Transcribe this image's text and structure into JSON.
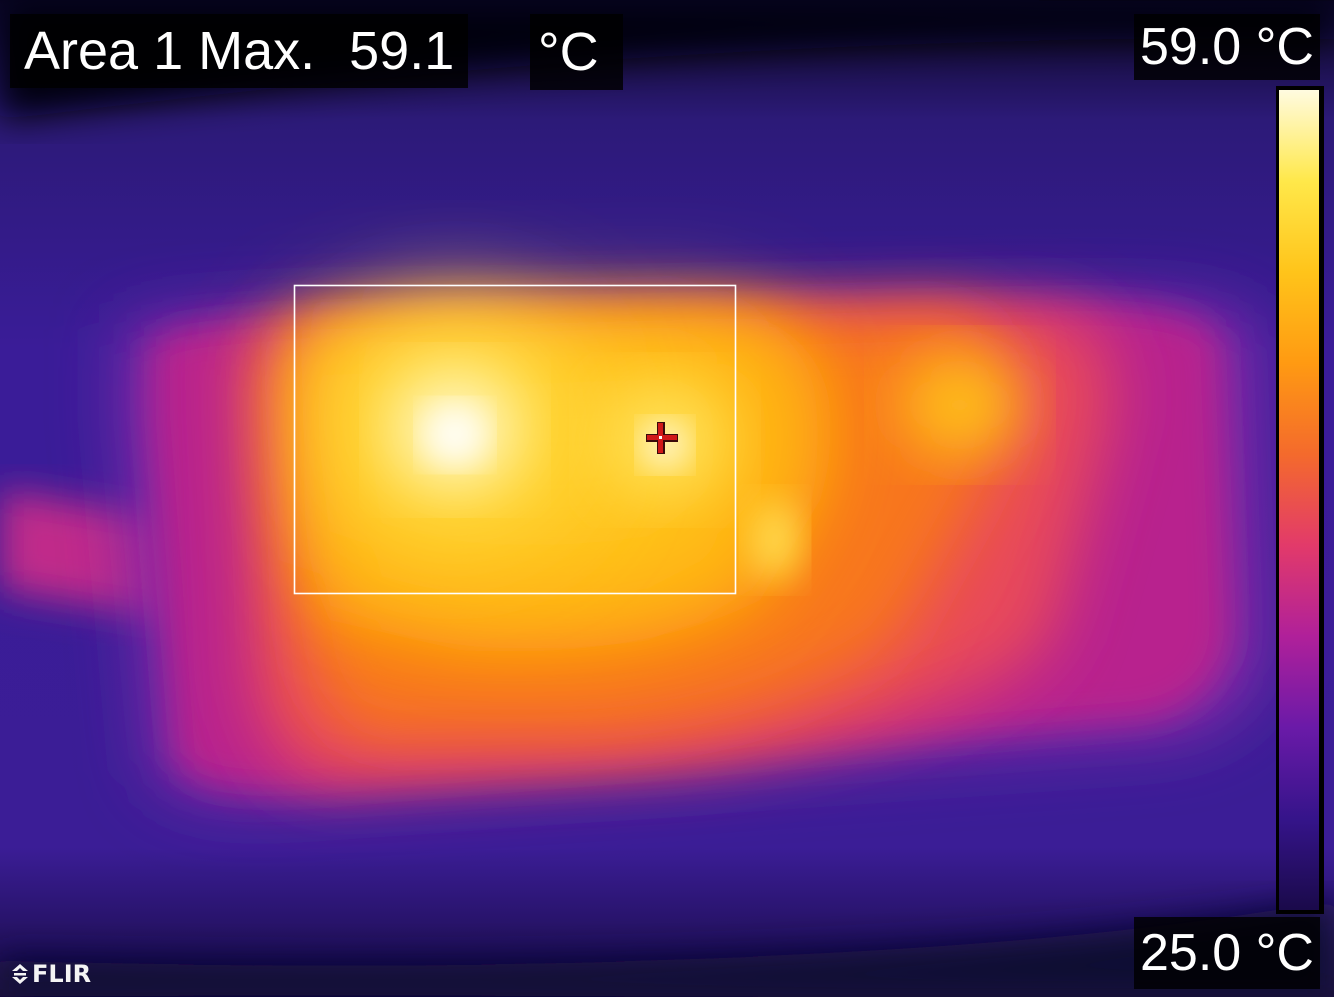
{
  "overlay": {
    "area_label": "Area 1 Max.",
    "area_value": "59.1",
    "area_unit": "°C"
  },
  "scale": {
    "max_label": "59.0 °C",
    "min_label": "25.0 °C",
    "palette": "iron",
    "colors": [
      "#1a0a4a",
      "#35148a",
      "#6a1aa8",
      "#b0209a",
      "#e23a6a",
      "#f46a2c",
      "#ff9a12",
      "#ffc41a",
      "#ffe84a",
      "#fffbe0"
    ]
  },
  "brand": {
    "logo_text": "FLIR"
  },
  "icons": {
    "crosshair": "crosshair-icon",
    "logo": "flir-logo-icon"
  }
}
